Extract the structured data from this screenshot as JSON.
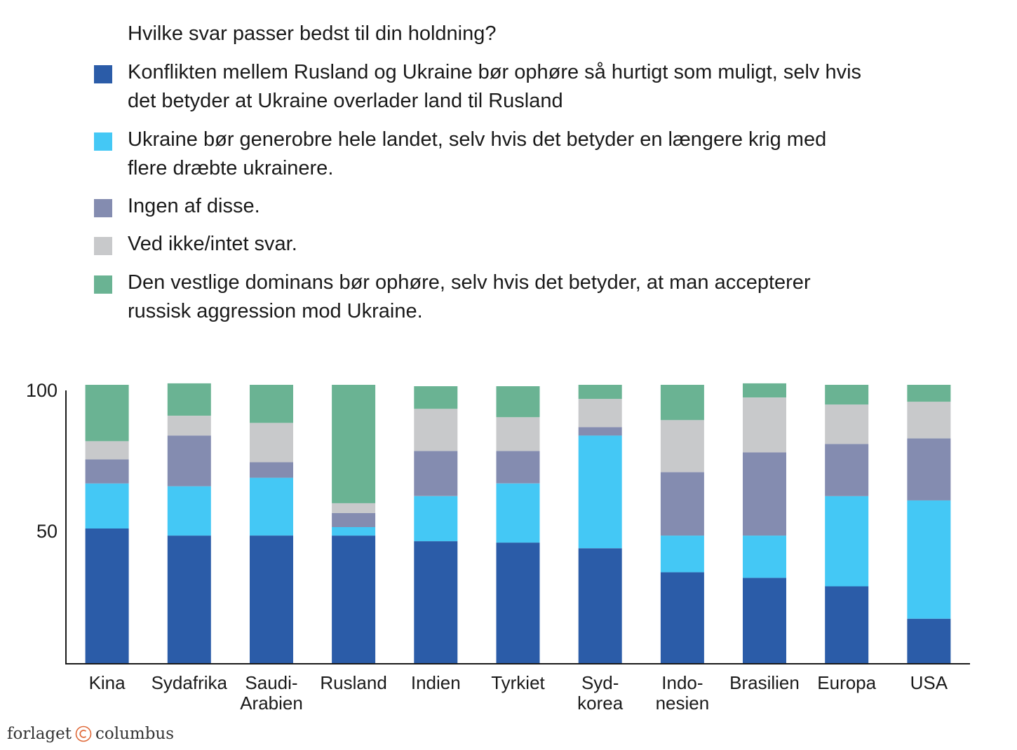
{
  "legend": {
    "title": "Hvilke svar passer bedst til din holdning?",
    "items": [
      {
        "label": "Konflikten mellem Rusland og Ukraine bør ophøre så hurtigt som muligt, selv hvis det betyder at Ukraine overlader land til Rusland",
        "color": "#2b5ca8"
      },
      {
        "label": "Ukraine bør generobre hele landet, selv hvis det betyder en længere krig med flere dræbte ukrainere.",
        "color": "#44c8f5"
      },
      {
        "label": "Ingen af disse.",
        "color": "#848cb0"
      },
      {
        "label": "Ved ikke/intet svar.",
        "color": "#c8c9cb"
      },
      {
        "label": "Den vestlige dominans bør ophøre, selv hvis det betyder, at man accepterer russisk aggression mod Ukraine.",
        "color": "#6ab393"
      }
    ]
  },
  "chart_data": {
    "type": "bar",
    "stacked": true,
    "categories": [
      [
        "Kina"
      ],
      [
        "Sydafrika"
      ],
      [
        "Saudi-",
        "Arabien"
      ],
      [
        "Rusland"
      ],
      [
        "Indien"
      ],
      [
        "Tyrkiet"
      ],
      [
        "Syd-",
        "korea"
      ],
      [
        "Indo-",
        "nesien"
      ],
      [
        "Brasilien"
      ],
      [
        "Europa"
      ],
      [
        "USA"
      ]
    ],
    "series": [
      {
        "name": "Konflikten mellem Rusland og Ukraine bør ophøre så hurtigt som muligt, selv hvis det betyder at Ukraine overlader land til Rusland",
        "color": "#2b5ca8",
        "values": [
          51,
          48.5,
          48.5,
          48.5,
          46.5,
          46,
          44,
          35.5,
          33.5,
          30.5,
          19
        ]
      },
      {
        "name": "Ukraine bør generobre hele landet, selv hvis det betyder en længere krig med flere dræbte ukrainere.",
        "color": "#44c8f5",
        "values": [
          16,
          17.5,
          20.5,
          3,
          16,
          21,
          40,
          13,
          15,
          32,
          42
        ]
      },
      {
        "name": "Ingen af disse.",
        "color": "#848cb0",
        "values": [
          8.5,
          18,
          5.5,
          5,
          16,
          11.5,
          3,
          22.5,
          29.5,
          18.5,
          22
        ]
      },
      {
        "name": "Ved ikke/intet svar.",
        "color": "#c8c9cb",
        "values": [
          6.5,
          7,
          14,
          3.5,
          15,
          12,
          10,
          18.5,
          19.5,
          14,
          13
        ]
      },
      {
        "name": "Den vestlige dominans bør ophøre, selv hvis det betyder, at man accepterer russisk aggression mod Ukraine.",
        "color": "#6ab393",
        "values": [
          20,
          11.5,
          13.5,
          42,
          8,
          11,
          5,
          12.5,
          5,
          7,
          6
        ]
      }
    ],
    "yticks": [
      100,
      50
    ],
    "ylim": [
      3,
      100
    ],
    "grid": false,
    "legend_position": "top"
  },
  "footer": {
    "brand_left": "forlaget",
    "brand_right": "columbus"
  }
}
